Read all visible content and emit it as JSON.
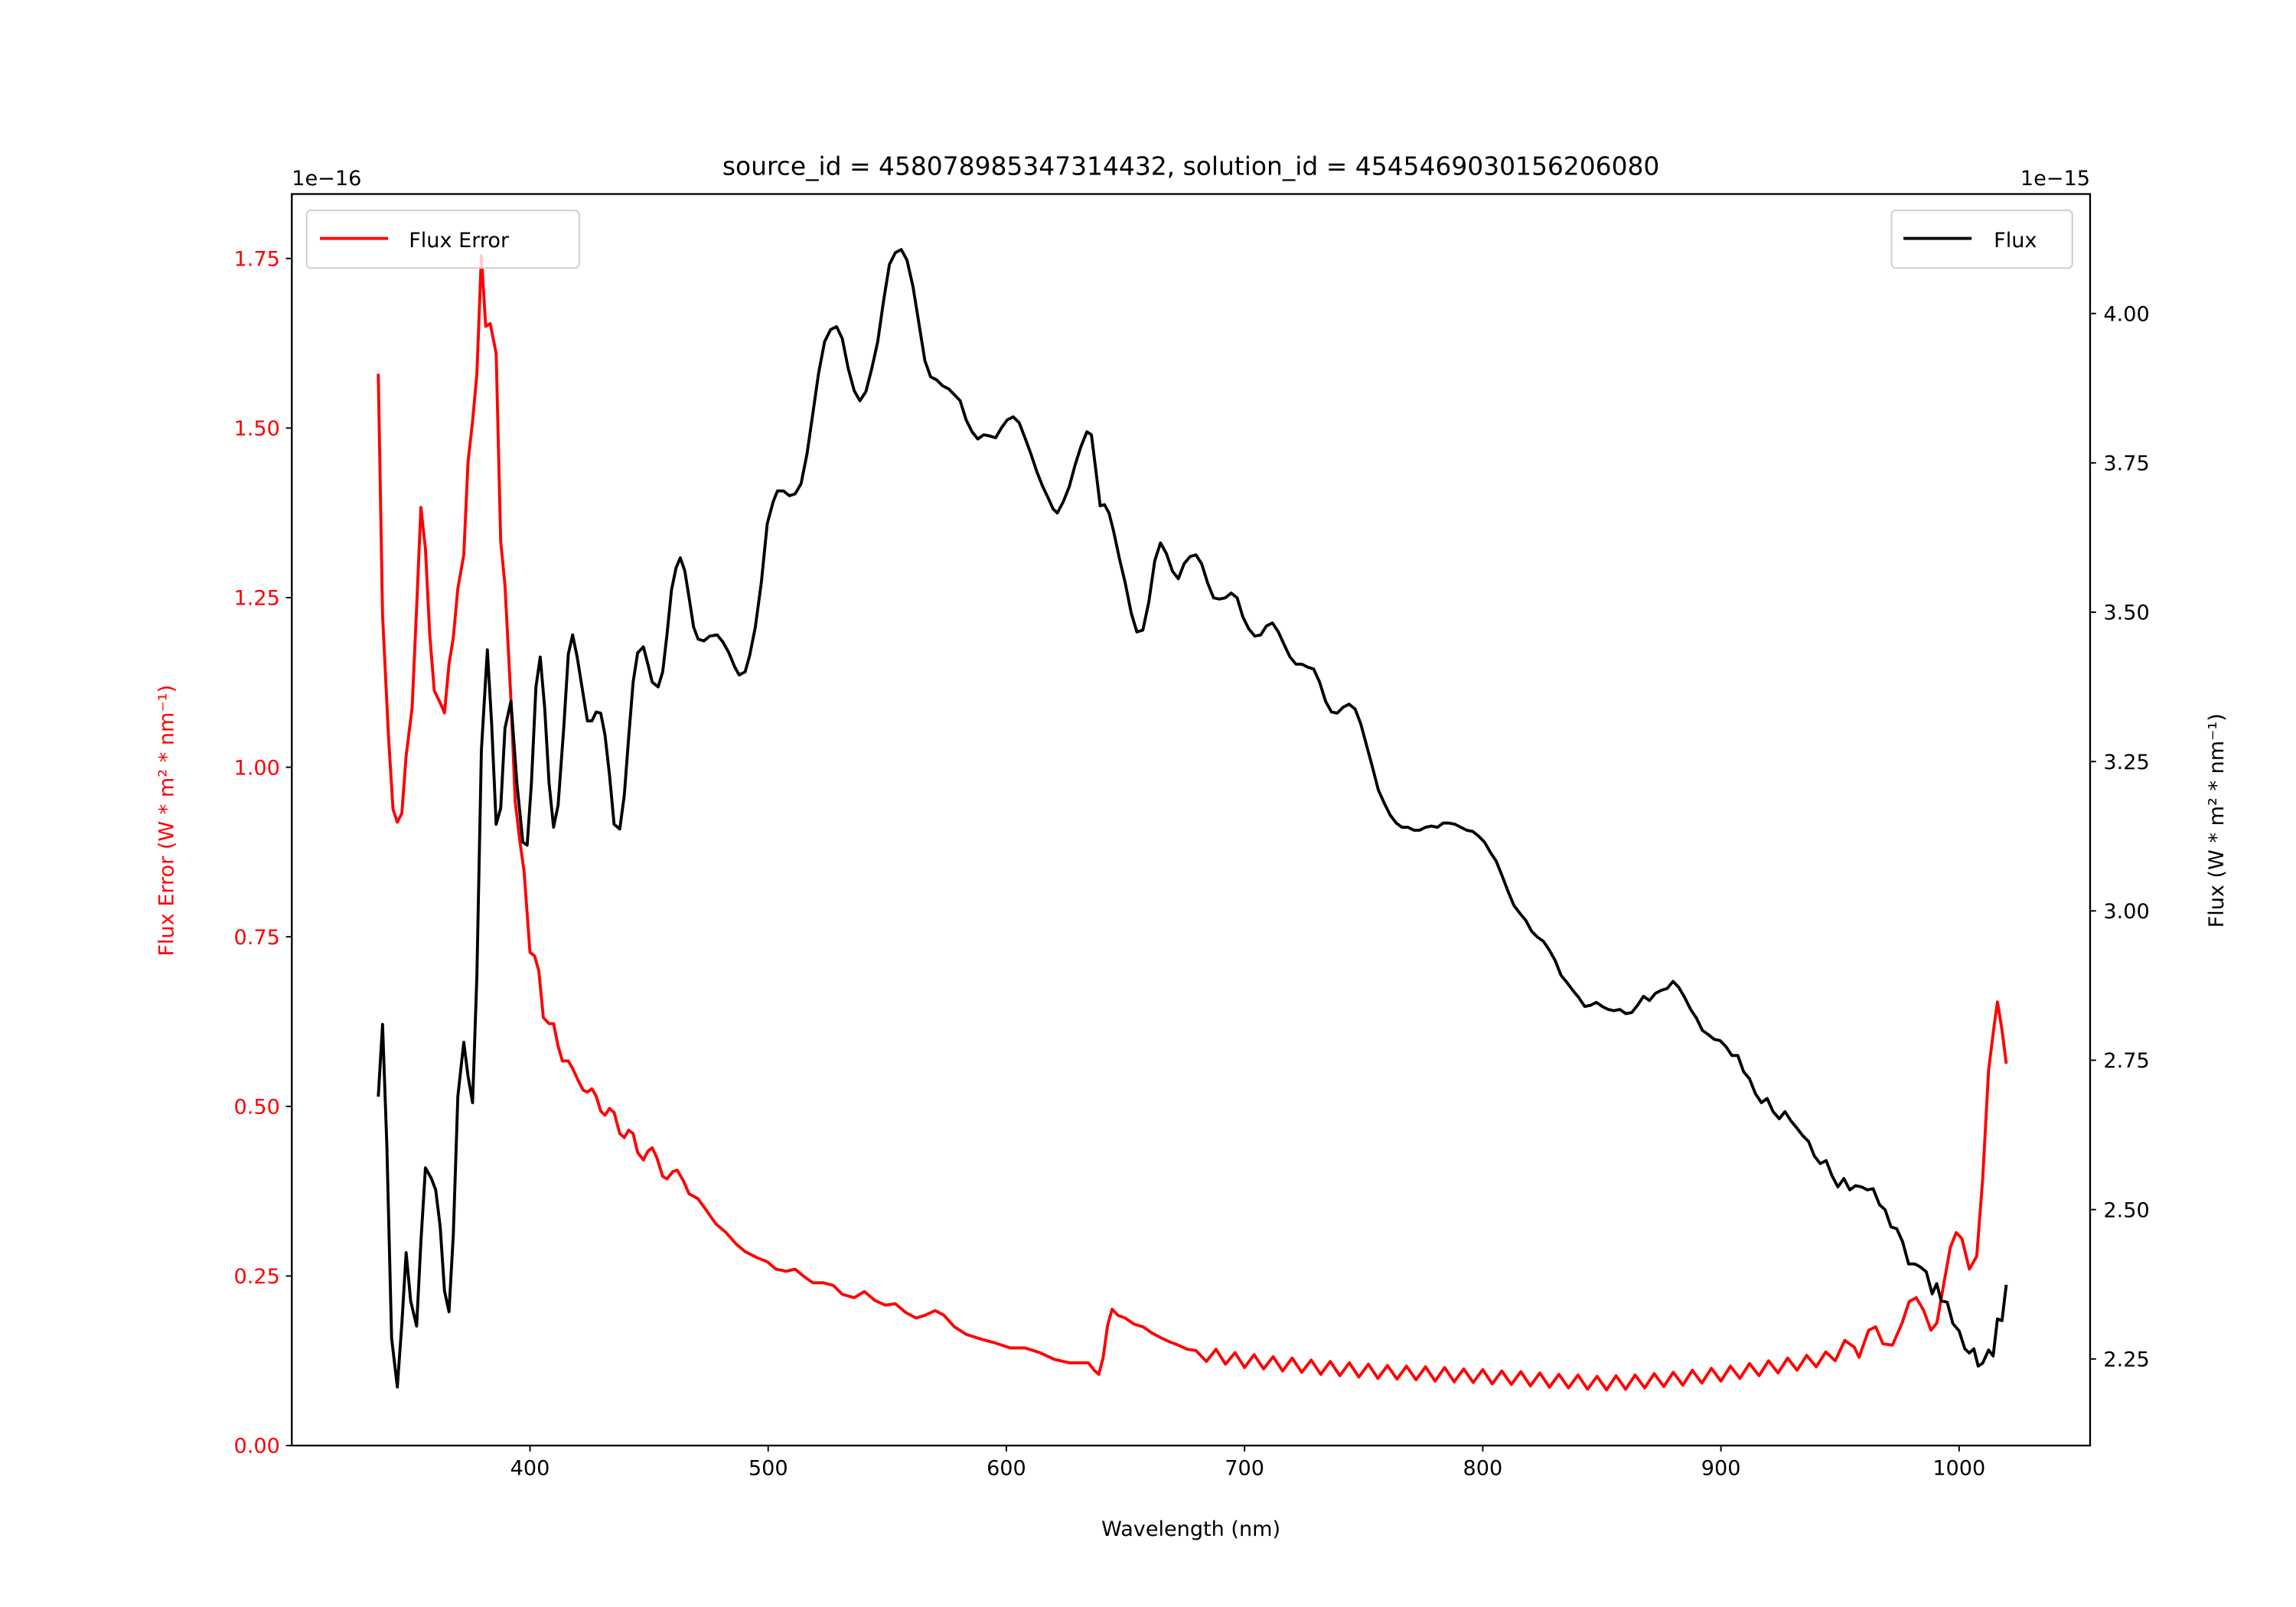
{
  "chart_data": {
    "type": "line",
    "title": "source_id = 4580789853473144​32, solution_id = 4545469030156206080",
    "xlabel": "Wavelength (nm)",
    "ylabel_left": "Flux Error (W * m² * nm⁻¹)",
    "ylabel_right": "Flux (W * m² * nm⁻¹)",
    "offset_left": "1e−16",
    "offset_right": "1e−15",
    "xlim": [
      300,
      1055
    ],
    "ylim_left": [
      0,
      1.845
    ],
    "ylim_right": [
      2.105,
      4.2
    ],
    "x_ticks": [
      400,
      500,
      600,
      700,
      800,
      900,
      1000
    ],
    "x_tick_labels": [
      "400",
      "500",
      "600",
      "700",
      "800",
      "900",
      "1000"
    ],
    "left_ticks": [
      0,
      0.25,
      0.5,
      0.75,
      1.0,
      1.25,
      1.5,
      1.75
    ],
    "left_tick_labels": [
      "0.00",
      "0.25",
      "0.50",
      "0.75",
      "1.00",
      "1.25",
      "1.50",
      "1.75"
    ],
    "right_ticks": [
      2.25,
      2.5,
      2.75,
      3.0,
      3.25,
      3.5,
      3.75,
      4.0
    ],
    "right_tick_labels": [
      "2.25",
      "2.50",
      "2.75",
      "3.00",
      "3.25",
      "3.50",
      "3.75",
      "4.00"
    ],
    "colors": {
      "flux_error": "#ff0000",
      "flux": "#000000"
    },
    "series": [
      {
        "name": "Flux Error",
        "axis": "left",
        "legend": "top-left",
        "color": "#ff0000",
        "x": [
          336.3,
          338.1,
          340.6,
          342.5,
          344.3,
          346.2,
          348.0,
          350.5,
          352.4,
          354.2,
          356.1,
          357.9,
          359.8,
          362.3,
          364.1,
          366.0,
          367.8,
          369.7,
          372.2,
          374.0,
          375.9,
          377.7,
          379.6,
          381.4,
          383.3,
          385.8,
          387.7,
          389.5,
          392.0,
          393.8,
          395.7,
          397.5,
          400,
          401.9,
          403.7,
          405.6,
          408.0,
          409.9,
          411.8,
          413.6,
          416.1,
          417.9,
          420.4,
          422.3,
          424.1,
          426.0,
          427.8,
          429.7,
          431.5,
          433.4,
          435.3,
          437.7,
          439.6,
          441.4,
          443.3,
          445.2,
          447.6,
          449.5,
          451.3,
          453.2,
          455.7,
          457.5,
          460,
          461.8,
          464.3,
          466.8,
          470.5,
          473.6,
          478,
          482.3,
          486.6,
          490.3,
          495.3,
          499.6,
          503.3,
          507.6,
          511.3,
          515.1,
          518.8,
          523.1,
          527.4,
          531.1,
          536.1,
          540.4,
          544.8,
          549.1,
          553.4,
          557.8,
          562.1,
          565.8,
          570.1,
          573.8,
          578.2,
          583.1,
          589.3,
          595.5,
          601.6,
          607.8,
          614,
          620.2,
          626.4,
          634.4,
          636.9,
          638.8,
          640.6,
          642.5,
          644.4,
          646.8,
          649.9,
          653.6,
          657.4,
          661.1,
          664.8,
          668.5,
          672.2,
          675.9,
          679.6,
          684,
          688,
          692,
          696,
          700,
          704,
          708,
          712,
          716,
          720,
          724,
          728,
          732,
          736,
          740,
          744,
          748,
          752,
          756,
          760,
          764,
          768,
          772,
          776,
          780,
          784,
          788,
          792,
          796,
          800,
          804,
          808,
          812,
          816,
          820,
          824,
          828,
          832,
          836,
          840,
          844,
          848,
          852,
          856,
          860,
          864,
          868,
          872,
          876,
          880,
          884,
          888,
          892,
          896,
          900,
          904,
          908,
          912,
          916,
          920,
          924,
          928,
          932,
          936,
          940,
          944,
          948,
          952,
          956,
          958,
          962,
          965,
          968,
          972,
          976,
          979,
          982,
          985,
          988.2,
          990.7,
          993.2,
          996.3,
          998.8,
          1001.2,
          1004.3,
          1007.4,
          1009.9,
          1012.4,
          1014.9,
          1016.1,
          1018,
          1019.8
        ],
        "y": [
          1.58,
          1.224,
          1.045,
          0.938,
          0.919,
          0.932,
          1.017,
          1.087,
          1.235,
          1.383,
          1.322,
          1.196,
          1.113,
          1.095,
          1.08,
          1.152,
          1.191,
          1.263,
          1.313,
          1.451,
          1.51,
          1.58,
          1.754,
          1.65,
          1.654,
          1.61,
          1.333,
          1.268,
          1.1,
          0.949,
          0.892,
          0.847,
          0.727,
          0.722,
          0.7,
          0.631,
          0.622,
          0.622,
          0.589,
          0.567,
          0.567,
          0.556,
          0.537,
          0.524,
          0.521,
          0.526,
          0.515,
          0.493,
          0.487,
          0.497,
          0.491,
          0.46,
          0.454,
          0.465,
          0.46,
          0.432,
          0.421,
          0.434,
          0.439,
          0.425,
          0.397,
          0.393,
          0.404,
          0.406,
          0.391,
          0.371,
          0.364,
          0.349,
          0.327,
          0.314,
          0.297,
          0.286,
          0.277,
          0.271,
          0.26,
          0.257,
          0.26,
          0.249,
          0.24,
          0.24,
          0.236,
          0.223,
          0.218,
          0.227,
          0.214,
          0.207,
          0.209,
          0.196,
          0.188,
          0.192,
          0.199,
          0.192,
          0.175,
          0.164,
          0.157,
          0.151,
          0.144,
          0.144,
          0.137,
          0.127,
          0.122,
          0.122,
          0.111,
          0.105,
          0.129,
          0.177,
          0.201,
          0.192,
          0.188,
          0.179,
          0.175,
          0.166,
          0.159,
          0.153,
          0.148,
          0.142,
          0.14,
          0.124,
          0.142,
          0.12,
          0.137,
          0.115,
          0.134,
          0.113,
          0.131,
          0.11,
          0.129,
          0.108,
          0.126,
          0.105,
          0.124,
          0.103,
          0.122,
          0.101,
          0.12,
          0.099,
          0.118,
          0.098,
          0.117,
          0.097,
          0.116,
          0.095,
          0.115,
          0.094,
          0.113,
          0.093,
          0.112,
          0.091,
          0.11,
          0.09,
          0.109,
          0.088,
          0.107,
          0.086,
          0.105,
          0.085,
          0.104,
          0.083,
          0.102,
          0.082,
          0.103,
          0.083,
          0.104,
          0.085,
          0.106,
          0.087,
          0.108,
          0.089,
          0.111,
          0.092,
          0.114,
          0.095,
          0.117,
          0.099,
          0.121,
          0.103,
          0.125,
          0.107,
          0.129,
          0.111,
          0.133,
          0.116,
          0.138,
          0.125,
          0.155,
          0.145,
          0.13,
          0.17,
          0.175,
          0.15,
          0.148,
          0.18,
          0.212,
          0.218,
          0.2,
          0.17,
          0.181,
          0.231,
          0.292,
          0.314,
          0.305,
          0.26,
          0.279,
          0.393,
          0.554,
          0.624,
          0.654,
          0.613,
          0.563
        ]
      },
      {
        "name": "Flux",
        "axis": "right",
        "legend": "top-right",
        "color": "#000000",
        "x": [
          336.3,
          338.1,
          339.9,
          341.9,
          344.3,
          346.2,
          348.0,
          349.9,
          352.4,
          354.2,
          356.1,
          358.6,
          360.4,
          362.3,
          364.1,
          366.0,
          367.8,
          369.7,
          372.2,
          374.0,
          375.9,
          377.7,
          379.6,
          382.1,
          383.9,
          385.8,
          387.7,
          389.5,
          392.0,
          394.5,
          397,
          398.8,
          400.6,
          402.5,
          404.3,
          406.2,
          408.0,
          409.9,
          411.8,
          414.2,
          416.1,
          417.9,
          419.8,
          422.3,
          424.1,
          426.0,
          427.8,
          429.7,
          431.5,
          433.4,
          435.3,
          437.7,
          439.6,
          441.4,
          443.3,
          445.2,
          447.6,
          449.5,
          451.3,
          453.8,
          455.7,
          457.5,
          459.4,
          461.3,
          463.1,
          465.0,
          466.8,
          468.7,
          470.6,
          473.0,
          475.5,
          478.6,
          481.0,
          483.5,
          486.0,
          487.8,
          490.3,
          492.2,
          494.6,
          497.1,
          499.6,
          502.1,
          503.9,
          506.4,
          508.9,
          511.3,
          513.8,
          516.3,
          518.8,
          521.2,
          523.7,
          526.2,
          528.7,
          531.1,
          533.6,
          536.1,
          538.5,
          541.0,
          543.5,
          546.0,
          548.4,
          550.9,
          553.4,
          555.9,
          558.3,
          560.8,
          563.3,
          565.8,
          568.2,
          570.7,
          573.2,
          575.7,
          578.2,
          580.6,
          583.1,
          585.6,
          588.0,
          590.5,
          593.0,
          595.5,
          598.0,
          600.4,
          602.9,
          605.4,
          607.8,
          610.3,
          612.8,
          615.3,
          617.7,
          619.6,
          621.4,
          623.9,
          626.4,
          628.9,
          631.3,
          633.8,
          635.7,
          637.5,
          639.4,
          641.2,
          643.1,
          645.0,
          647.4,
          649.9,
          652.4,
          654.8,
          657.3,
          659.8,
          662.3,
          664.7,
          667.2,
          669.7,
          672.2,
          674.6,
          677.1,
          679.6,
          682.0,
          684.5,
          687.0,
          689.5,
          691.9,
          694.4,
          696.9,
          699.3,
          701.8,
          704.3,
          706.8,
          709.2,
          711.7,
          714.2,
          716.7,
          719.1,
          721.6,
          724.1,
          726.5,
          729.0,
          731.5,
          734.0,
          736.5,
          738.9,
          741.4,
          743.9,
          746.4,
          748.8,
          751.3,
          753.8,
          756.2,
          758.7,
          761.2,
          763.7,
          766.1,
          768.6,
          771.1,
          773.5,
          776.0,
          778.5,
          781.0,
          783.4,
          785.9,
          788.4,
          790.8,
          793.3,
          795.8,
          798.3,
          800.8,
          803.2,
          805.7,
          808.2,
          810.6,
          813.1,
          815.6,
          818.1,
          820.5,
          823.0,
          825.5,
          828.0,
          830.4,
          832.9,
          835.4,
          837.8,
          840.3,
          842.8,
          845.3,
          847.7,
          850.2,
          852.7,
          855.1,
          857.6,
          860.1,
          862.6,
          865.0,
          867.5,
          870.0,
          872.5,
          874.9,
          877.4,
          879.9,
          882.3,
          884.8,
          887.3,
          889.8,
          892.2,
          894.7,
          897.2,
          899.6,
          902.1,
          904.6,
          907.1,
          909.5,
          912.0,
          914.5,
          917.0,
          919.4,
          921.9,
          924.5,
          926.9,
          929.3,
          931.8,
          934.3,
          936.8,
          939.2,
          941.7,
          944.2,
          946.6,
          949.1,
          951.6,
          954.1,
          956.5,
          959.0,
          961.5,
          963.9,
          966.6,
          968.9,
          971.4,
          973.8,
          976.3,
          978.8,
          981.4,
          983.7,
          986.2,
          988.7,
          990.6,
          992.5,
          995.0,
          997.4,
          1000,
          1002.4,
          1004.3,
          1006.2,
          1008.0,
          1009.9,
          1012.4,
          1014.3,
          1016.1,
          1018.0,
          1019.8
        ],
        "y": [
          2.689,
          2.81,
          2.607,
          2.285,
          2.203,
          2.309,
          2.428,
          2.347,
          2.305,
          2.446,
          2.57,
          2.552,
          2.533,
          2.471,
          2.364,
          2.329,
          2.458,
          2.689,
          2.78,
          2.723,
          2.679,
          2.892,
          3.269,
          3.437,
          3.313,
          3.145,
          3.172,
          3.306,
          3.351,
          3.214,
          3.115,
          3.11,
          3.214,
          3.375,
          3.425,
          3.338,
          3.214,
          3.14,
          3.177,
          3.308,
          3.43,
          3.462,
          3.425,
          3.363,
          3.318,
          3.318,
          3.333,
          3.331,
          3.294,
          3.227,
          3.145,
          3.137,
          3.194,
          3.289,
          3.383,
          3.432,
          3.442,
          3.413,
          3.383,
          3.375,
          3.4,
          3.462,
          3.537,
          3.574,
          3.591,
          3.569,
          3.524,
          3.475,
          3.455,
          3.452,
          3.46,
          3.462,
          3.45,
          3.432,
          3.408,
          3.395,
          3.4,
          3.427,
          3.475,
          3.549,
          3.648,
          3.685,
          3.703,
          3.703,
          3.695,
          3.698,
          3.715,
          3.765,
          3.834,
          3.901,
          3.953,
          3.973,
          3.978,
          3.958,
          3.908,
          3.871,
          3.854,
          3.869,
          3.908,
          3.953,
          4.02,
          4.082,
          4.102,
          4.107,
          4.089,
          4.045,
          3.983,
          3.921,
          3.894,
          3.889,
          3.879,
          3.874,
          3.864,
          3.854,
          3.822,
          3.802,
          3.79,
          3.797,
          3.795,
          3.792,
          3.809,
          3.822,
          3.827,
          3.817,
          3.792,
          3.765,
          3.735,
          3.71,
          3.69,
          3.673,
          3.666,
          3.685,
          3.71,
          3.747,
          3.777,
          3.802,
          3.797,
          3.74,
          3.678,
          3.68,
          3.666,
          3.636,
          3.591,
          3.549,
          3.499,
          3.467,
          3.47,
          3.517,
          3.586,
          3.616,
          3.598,
          3.569,
          3.556,
          3.581,
          3.593,
          3.596,
          3.581,
          3.549,
          3.524,
          3.522,
          3.524,
          3.532,
          3.524,
          3.492,
          3.472,
          3.46,
          3.462,
          3.477,
          3.482,
          3.467,
          3.445,
          3.425,
          3.413,
          3.413,
          3.408,
          3.405,
          3.383,
          3.351,
          3.333,
          3.331,
          3.341,
          3.346,
          3.338,
          3.313,
          3.276,
          3.239,
          3.202,
          3.18,
          3.16,
          3.147,
          3.14,
          3.14,
          3.135,
          3.135,
          3.14,
          3.142,
          3.14,
          3.147,
          3.147,
          3.145,
          3.14,
          3.135,
          3.133,
          3.125,
          3.115,
          3.098,
          3.083,
          3.058,
          3.033,
          3.009,
          2.996,
          2.984,
          2.966,
          2.956,
          2.949,
          2.934,
          2.917,
          2.892,
          2.88,
          2.867,
          2.855,
          2.84,
          2.842,
          2.847,
          2.84,
          2.835,
          2.833,
          2.835,
          2.828,
          2.83,
          2.842,
          2.857,
          2.85,
          2.862,
          2.867,
          2.87,
          2.882,
          2.872,
          2.855,
          2.835,
          2.82,
          2.8,
          2.793,
          2.785,
          2.783,
          2.773,
          2.758,
          2.758,
          2.731,
          2.719,
          2.694,
          2.679,
          2.686,
          2.664,
          2.652,
          2.664,
          2.649,
          2.637,
          2.624,
          2.614,
          2.59,
          2.577,
          2.582,
          2.557,
          2.538,
          2.552,
          2.533,
          2.54,
          2.538,
          2.533,
          2.535,
          2.508,
          2.5,
          2.471,
          2.468,
          2.446,
          2.409,
          2.409,
          2.404,
          2.396,
          2.359,
          2.376,
          2.347,
          2.345,
          2.309,
          2.297,
          2.267,
          2.26,
          2.267,
          2.238,
          2.243,
          2.265,
          2.255,
          2.317,
          2.314,
          2.374
        ]
      }
    ]
  }
}
